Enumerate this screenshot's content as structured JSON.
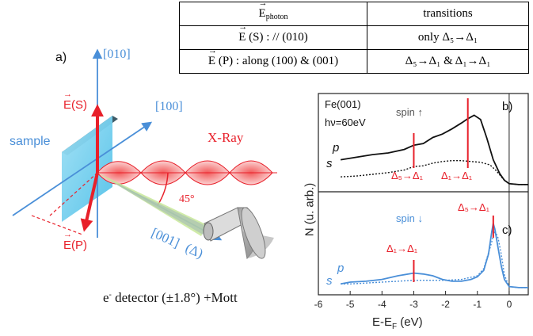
{
  "table": {
    "header": {
      "col1_symbol": "E",
      "col1_sub": "photon",
      "col2": "transitions"
    },
    "rows": [
      {
        "pol": "(S) : // (010)",
        "trans": "only Δ₅→Δ₁"
      },
      {
        "pol": "(P) : along (100) & (001)",
        "trans": "Δ₅→Δ₁ & Δ₁→Δ₁"
      }
    ]
  },
  "diagram": {
    "panel_label": "a)",
    "axis_010": "[010]",
    "axis_100": "[100]",
    "axis_001": "[001]",
    "delta_label": "(Δ)",
    "sample_label": "sample",
    "xray_label": "X-Ray",
    "angle_label": "45°",
    "es_label": "(S)",
    "ep_label": "(P)",
    "vector_symbol": "E",
    "detector_prefix": "e",
    "detector_sup": "-",
    "detector_label": " detector (±1.8°) +Mott"
  },
  "plot": {
    "ylabel": "N (u. arb.)",
    "xlabel_main": "E-E",
    "xlabel_sub": "F",
    "xlabel_unit": " (eV)",
    "x_ticks": [
      "-6",
      "-5",
      "-4",
      "-3",
      "-2",
      "-1",
      "0"
    ],
    "panel_b": {
      "label": "b)",
      "sample": "Fe(001)",
      "energy": "hν=60eV",
      "spin": "spin ↑",
      "curve_p": "p",
      "curve_s": "s",
      "annot_1": "Δ₅→Δ₁",
      "annot_2": "Δ₁→Δ₁"
    },
    "panel_c": {
      "label": "c)",
      "spin": "spin ↓",
      "curve_p": "p",
      "curve_s": "s",
      "annot_1": "Δ₁→Δ₁",
      "annot_2": "Δ₅→Δ₁"
    },
    "colors": {
      "red": "#e8202a",
      "blue": "#4a8fd8",
      "black": "#111111"
    }
  },
  "chart_data": [
    {
      "type": "line",
      "panel": "b)",
      "xlabel": "E-EF (eV)",
      "ylabel": "N (u. arb.)",
      "xlim": [
        -6,
        0.6
      ],
      "series": [
        {
          "name": "p",
          "x": [
            -5.3,
            -4.8,
            -4.3,
            -3.8,
            -3.3,
            -3.0,
            -2.7,
            -2.4,
            -2.1,
            -1.8,
            -1.5,
            -1.3,
            -1.1,
            -0.9,
            -0.7,
            -0.5,
            -0.3,
            -0.15,
            0,
            0.3,
            0.6
          ],
          "y": [
            0.3,
            0.33,
            0.36,
            0.38,
            0.42,
            0.47,
            0.49,
            0.56,
            0.6,
            0.66,
            0.73,
            0.78,
            0.82,
            0.77,
            0.55,
            0.3,
            0.14,
            0.06,
            0.02,
            0.01,
            0.01
          ]
        },
        {
          "name": "s",
          "x": [
            -5.3,
            -4.8,
            -4.3,
            -3.8,
            -3.3,
            -3.0,
            -2.7,
            -2.4,
            -2.1,
            -1.8,
            -1.5,
            -1.2,
            -0.9,
            -0.6,
            -0.4,
            -0.2,
            0,
            0.3,
            0.6
          ],
          "y": [
            0.1,
            0.11,
            0.13,
            0.15,
            0.18,
            0.22,
            0.23,
            0.26,
            0.28,
            0.29,
            0.29,
            0.28,
            0.27,
            0.24,
            0.17,
            0.08,
            0.02,
            0.01,
            0.01
          ]
        }
      ]
    },
    {
      "type": "line",
      "panel": "c)",
      "xlabel": "E-EF (eV)",
      "ylabel": "N (u. arb.)",
      "xlim": [
        -6,
        0.6
      ],
      "series": [
        {
          "name": "p",
          "x": [
            -5.3,
            -5.0,
            -4.5,
            -4.0,
            -3.5,
            -3.0,
            -2.7,
            -2.4,
            -2.1,
            -1.8,
            -1.5,
            -1.2,
            -1.0,
            -0.8,
            -0.65,
            -0.55,
            -0.5,
            -0.45,
            -0.35,
            -0.25,
            -0.15,
            0,
            0.3,
            0.6
          ],
          "y": [
            0.05,
            0.07,
            0.08,
            0.1,
            0.14,
            0.17,
            0.16,
            0.14,
            0.1,
            0.08,
            0.08,
            0.1,
            0.13,
            0.2,
            0.38,
            0.62,
            0.72,
            0.66,
            0.45,
            0.25,
            0.1,
            0.02,
            0.01,
            0.01
          ]
        },
        {
          "name": "s",
          "x": [
            -5.3,
            -5.0,
            -4.5,
            -4.0,
            -3.5,
            -3.0,
            -2.5,
            -2.0,
            -1.5,
            -1.0,
            -0.8,
            -0.6,
            -0.45,
            -0.35,
            -0.25,
            -0.15,
            0,
            0.3,
            0.6
          ],
          "y": [
            0.05,
            0.05,
            0.06,
            0.07,
            0.08,
            0.09,
            0.09,
            0.09,
            0.1,
            0.14,
            0.22,
            0.45,
            0.64,
            0.56,
            0.38,
            0.15,
            0.02,
            0.01,
            0.01
          ]
        }
      ]
    }
  ]
}
